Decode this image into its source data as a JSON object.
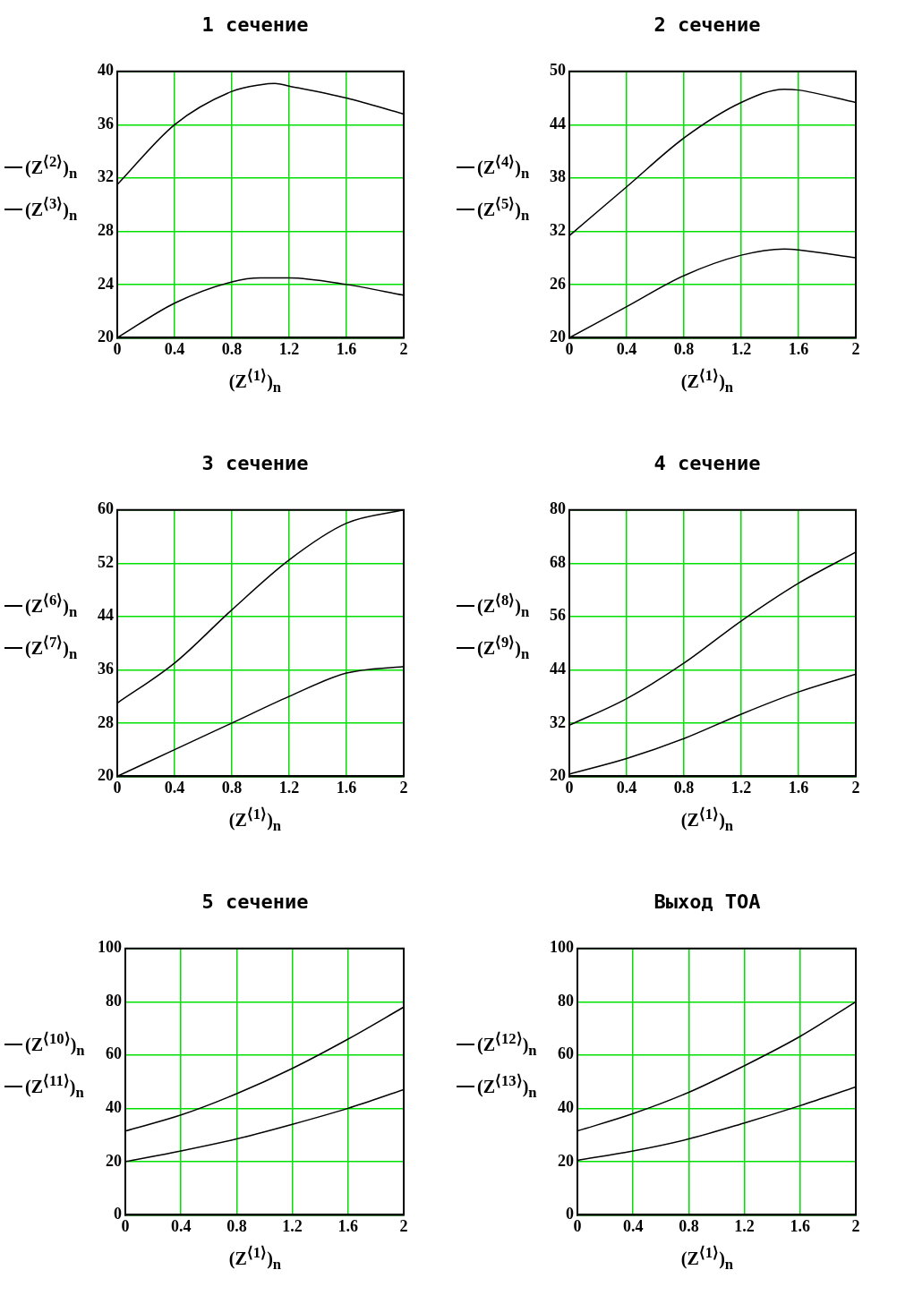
{
  "chart_data": [
    {
      "type": "line",
      "title": "1 сечение",
      "xlabel": "(Z$^{⟨1⟩}$)$_{n}$",
      "x": [
        0,
        0.4,
        0.8,
        1.0,
        1.1,
        1.2,
        1.6,
        2
      ],
      "xlim": [
        0,
        2
      ],
      "xticks": [
        0,
        0.4,
        0.8,
        1.2,
        1.6,
        2
      ],
      "ylim": [
        20,
        40
      ],
      "yticks": [
        20,
        24,
        28,
        32,
        36,
        40
      ],
      "grid": true,
      "legend": "left",
      "series": [
        {
          "name": "(Z$^{⟨2⟩}$)$_{n}$",
          "color": "#000000",
          "values": [
            31.5,
            36,
            38.5,
            39,
            39.1,
            38.9,
            38,
            36.8
          ]
        },
        {
          "name": "(Z$^{⟨3⟩}$)$_{n}$",
          "color": "#000000",
          "values": [
            20,
            22.6,
            24.2,
            24.5,
            24.5,
            24.5,
            24,
            23.2
          ]
        }
      ]
    },
    {
      "type": "line",
      "title": "2 сечение",
      "xlabel": "(Z$^{⟨1⟩}$)$_{n}$",
      "x": [
        0,
        0.4,
        0.8,
        1.2,
        1.5,
        1.6,
        2
      ],
      "xlim": [
        0,
        2
      ],
      "xticks": [
        0,
        0.4,
        0.8,
        1.2,
        1.6,
        2
      ],
      "ylim": [
        20,
        50
      ],
      "yticks": [
        20,
        26,
        32,
        38,
        44,
        50
      ],
      "grid": true,
      "legend": "left",
      "series": [
        {
          "name": "(Z$^{⟨4⟩}$)$_{n}$",
          "color": "#000000",
          "values": [
            31.5,
            37,
            42.5,
            46.5,
            48,
            47.9,
            46.5
          ]
        },
        {
          "name": "(Z$^{⟨5⟩}$)$_{n}$",
          "color": "#000000",
          "values": [
            20,
            23.5,
            27,
            29.3,
            30,
            29.9,
            29
          ]
        }
      ]
    },
    {
      "type": "line",
      "title": "3 сечение",
      "xlabel": "(Z$^{⟨1⟩}$)$_{n}$",
      "x": [
        0,
        0.4,
        0.8,
        1.2,
        1.6,
        2
      ],
      "xlim": [
        0,
        2
      ],
      "xticks": [
        0,
        0.4,
        0.8,
        1.2,
        1.6,
        2
      ],
      "ylim": [
        20,
        60
      ],
      "yticks": [
        20,
        28,
        36,
        44,
        52,
        60
      ],
      "grid": true,
      "legend": "left",
      "series": [
        {
          "name": "(Z$^{⟨6⟩}$)$_{n}$",
          "color": "#000000",
          "values": [
            31,
            37,
            45,
            52.5,
            58,
            60
          ]
        },
        {
          "name": "(Z$^{⟨7⟩}$)$_{n}$",
          "color": "#000000",
          "values": [
            20,
            24,
            28,
            32,
            35.5,
            36.5
          ]
        }
      ]
    },
    {
      "type": "line",
      "title": "4 сечение",
      "xlabel": "(Z$^{⟨1⟩}$)$_{n}$",
      "x": [
        0,
        0.4,
        0.8,
        1.2,
        1.6,
        2
      ],
      "xlim": [
        0,
        2
      ],
      "xticks": [
        0,
        0.4,
        0.8,
        1.2,
        1.6,
        2
      ],
      "ylim": [
        20,
        80
      ],
      "yticks": [
        20,
        32,
        44,
        56,
        68,
        80
      ],
      "grid": true,
      "legend": "left",
      "series": [
        {
          "name": "(Z$^{⟨8⟩}$)$_{n}$",
          "color": "#000000",
          "values": [
            31.5,
            37.5,
            45.5,
            55,
            63.5,
            70.5
          ]
        },
        {
          "name": "(Z$^{⟨9⟩}$)$_{n}$",
          "color": "#000000",
          "values": [
            20.5,
            24,
            28.5,
            34,
            39,
            43
          ]
        }
      ]
    },
    {
      "type": "line",
      "title": "5 сечение",
      "xlabel": "(Z$^{⟨1⟩}$)$_{n}$",
      "x": [
        0,
        0.4,
        0.8,
        1.2,
        1.6,
        2
      ],
      "xlim": [
        0,
        2
      ],
      "xticks": [
        0,
        0.4,
        0.8,
        1.2,
        1.6,
        2
      ],
      "ylim": [
        0,
        100
      ],
      "yticks": [
        0,
        20,
        40,
        60,
        80,
        100
      ],
      "grid": true,
      "legend": "left",
      "series": [
        {
          "name": "(Z$^{⟨10⟩}$)$_{n}$",
          "color": "#000000",
          "values": [
            31.5,
            37.5,
            45.5,
            55,
            66,
            78
          ]
        },
        {
          "name": "(Z$^{⟨11⟩}$)$_{n}$",
          "color": "#000000",
          "values": [
            20,
            24,
            28.5,
            34,
            40,
            47
          ]
        }
      ]
    },
    {
      "type": "line",
      "title": "Выход ТОА",
      "xlabel": "(Z$^{⟨1⟩}$)$_{n}$",
      "x": [
        0,
        0.4,
        0.8,
        1.2,
        1.6,
        2
      ],
      "xlim": [
        0,
        2
      ],
      "xticks": [
        0,
        0.4,
        0.8,
        1.2,
        1.6,
        2
      ],
      "ylim": [
        0,
        100
      ],
      "yticks": [
        0,
        20,
        40,
        60,
        80,
        100
      ],
      "grid": true,
      "legend": "left",
      "series": [
        {
          "name": "(Z$^{⟨12⟩}$)$_{n}$",
          "color": "#000000",
          "values": [
            31.5,
            38,
            46,
            56,
            67,
            80
          ]
        },
        {
          "name": "(Z$^{⟨13⟩}$)$_{n}$",
          "color": "#000000",
          "values": [
            20.5,
            24,
            28.5,
            34.5,
            41,
            48
          ]
        }
      ]
    }
  ]
}
